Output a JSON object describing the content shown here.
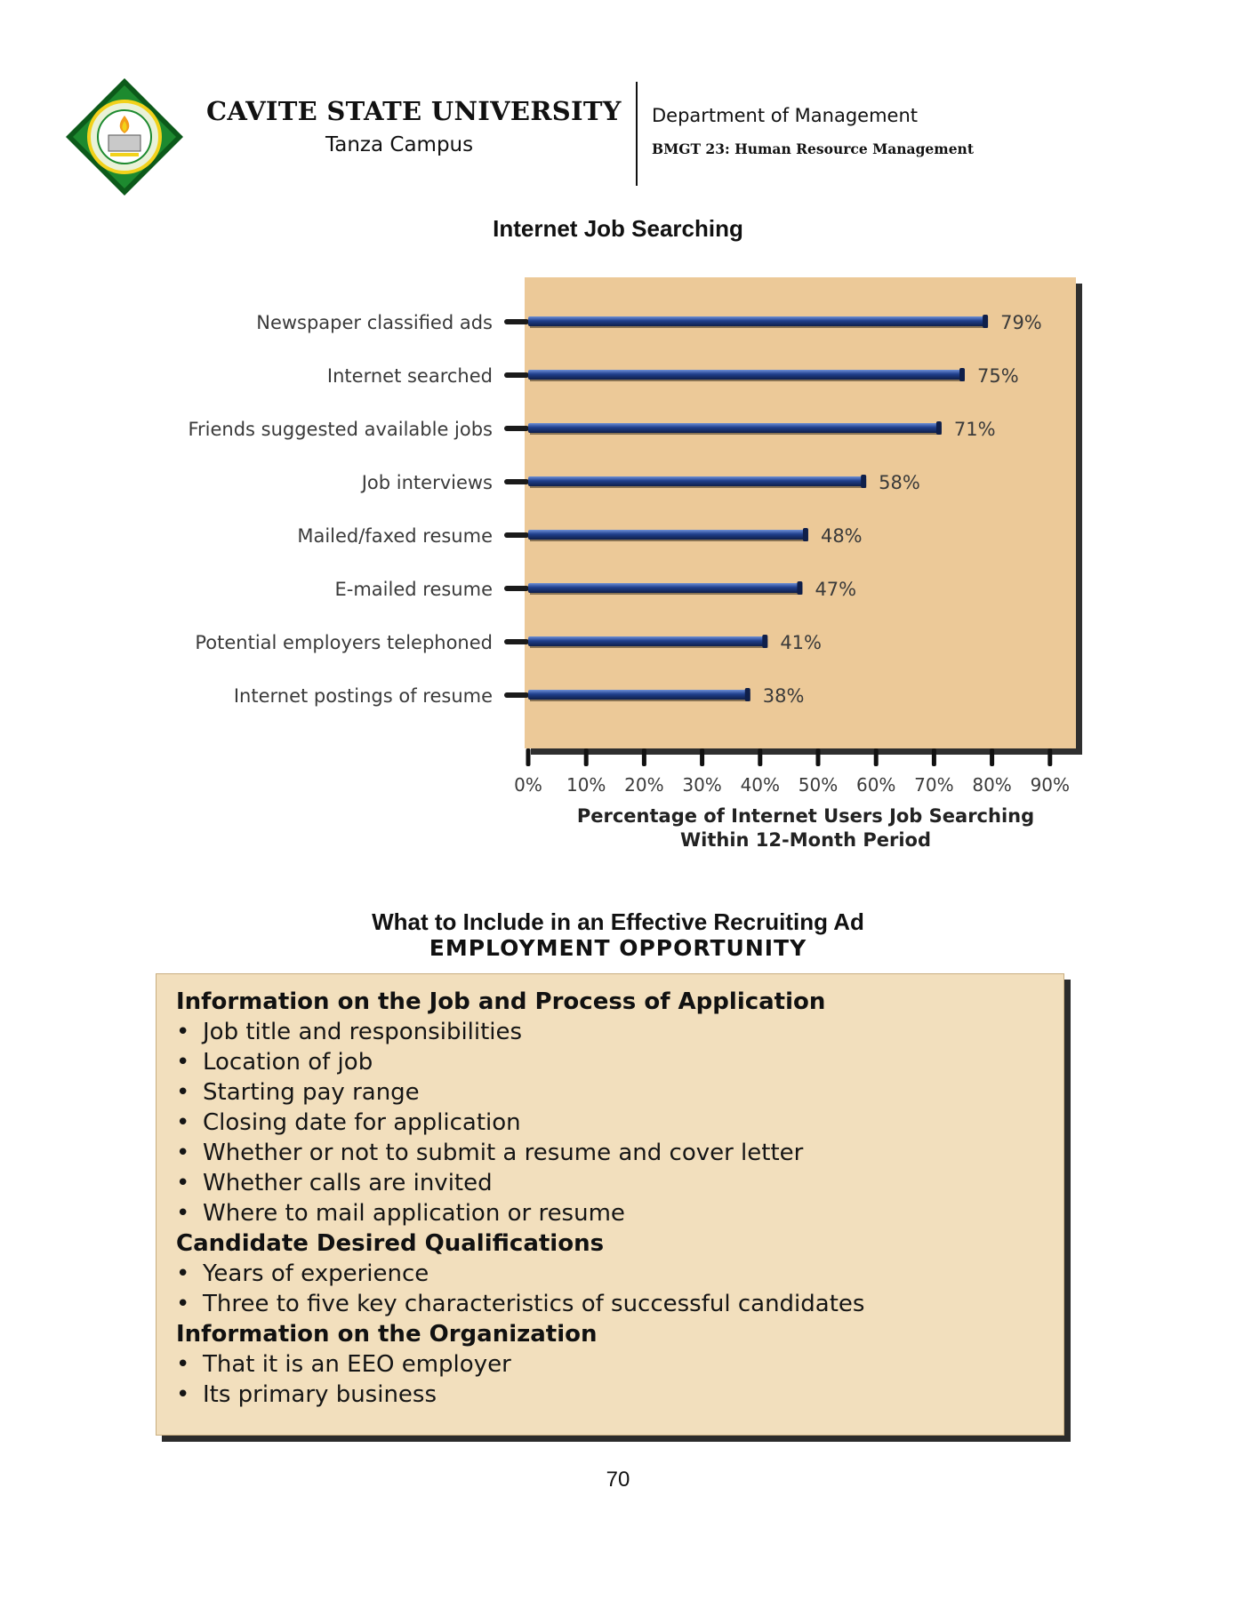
{
  "header": {
    "university": "CAVITE STATE UNIVERSITY",
    "campus": "Tanza Campus",
    "department": "Department of Management",
    "course": "BMGT 23: Human Resource Management",
    "logo_colors": {
      "green": "#1d8a2f",
      "dark_green": "#0c5a1a",
      "yellow": "#f2d21b"
    }
  },
  "chart_section": {
    "title": "Internet Job Searching"
  },
  "chart_data": {
    "type": "bar",
    "orientation": "horizontal",
    "categories": [
      "Newspaper classified ads",
      "Internet searched",
      "Friends suggested available jobs",
      "Job interviews",
      "Mailed/faxed resume",
      "E-mailed resume",
      "Potential employers telephoned",
      "Internet postings of resume"
    ],
    "values": [
      79,
      75,
      71,
      58,
      48,
      47,
      41,
      38
    ],
    "value_labels": [
      "79%",
      "75%",
      "71%",
      "58%",
      "48%",
      "47%",
      "41%",
      "38%"
    ],
    "xlim": [
      0,
      90
    ],
    "x_ticks": [
      "0%",
      "10%",
      "20%",
      "30%",
      "40%",
      "50%",
      "60%",
      "70%",
      "80%",
      "90%"
    ],
    "xlabel_lines": [
      "Percentage of Internet Users Job Searching",
      "Within 12-Month Period"
    ],
    "colors": {
      "bar": "#1f3f8c",
      "bar_highlight": "#6d8fd6",
      "panel": "#ecc998",
      "shadow": "#2f2f2f",
      "axis": "#111111",
      "label_text": "#3a3a3a"
    }
  },
  "ad_section": {
    "title": "What to Include in an Effective Recruiting Ad",
    "subtitle": "EMPLOYMENT OPPORTUNITY",
    "groups": [
      {
        "heading": "Information on the Job and Process of Application",
        "items": [
          "Job title and responsibilities",
          "Location of job",
          "Starting pay range",
          "Closing date for application",
          "Whether or not to submit a resume and cover letter",
          "Whether calls are invited",
          "Where to mail application or resume"
        ]
      },
      {
        "heading": "Candidate Desired Qualifications",
        "items": [
          "Years of experience",
          "Three to five key characteristics of successful candidates"
        ]
      },
      {
        "heading": "Information on the Organization",
        "items": [
          "That it is an EEO employer",
          "Its primary business"
        ]
      }
    ],
    "bullet": "•"
  },
  "page_number": "70"
}
